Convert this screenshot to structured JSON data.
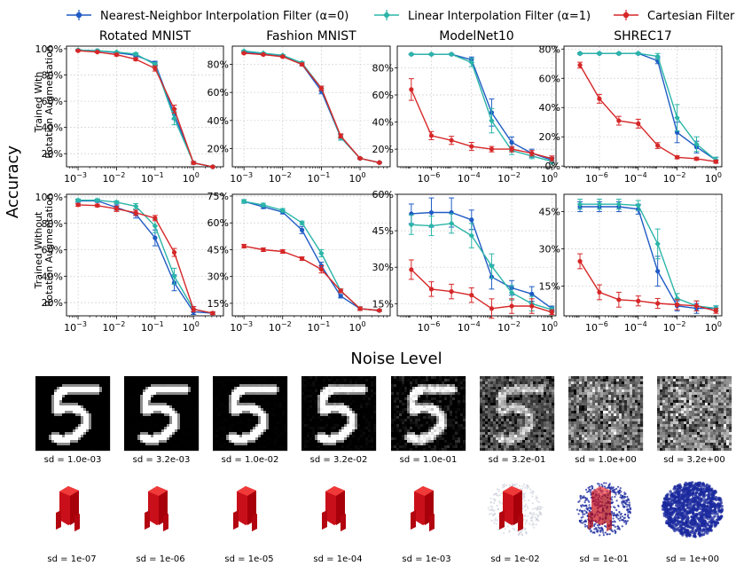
{
  "figure": {
    "ylabel": "Accuracy",
    "xlabel": "Noise Level",
    "row_labels": [
      [
        "Trained With",
        "Rotation Augmentation"
      ],
      [
        "Trained Without",
        "Rotation Augmentation"
      ]
    ],
    "legend": [
      {
        "name": "Nearest-Neighbor Interpolation Filter (α=0)",
        "color": "#1f5bc4"
      },
      {
        "name": "Linear Interpolation Filter (α=1)",
        "color": "#2bb5a8"
      },
      {
        "name": "Cartesian Filter",
        "color": "#d62728"
      }
    ]
  },
  "chart_data": [
    {
      "type": "line",
      "title": "Rotated MNIST",
      "row": 0,
      "xscale": "log",
      "xlim": [
        0.0005,
        6
      ],
      "ylim": [
        0.1,
        1.02
      ],
      "x": [
        0.001,
        0.00316,
        0.01,
        0.0316,
        0.1,
        0.316,
        1.0,
        3.16
      ],
      "xticks": [
        {
          "v": 0.001,
          "t": "10",
          "e": "−3"
        },
        {
          "v": 0.01,
          "t": "10",
          "e": "−2"
        },
        {
          "v": 0.1,
          "t": "10",
          "e": "−1"
        },
        {
          "v": 1,
          "t": "10",
          "e": "0"
        }
      ],
      "yticks": [
        {
          "v": 0.2,
          "t": "20%"
        },
        {
          "v": 0.4,
          "t": "40%"
        },
        {
          "v": 0.6,
          "t": "60%"
        },
        {
          "v": 0.8,
          "t": "80%"
        },
        {
          "v": 1.0,
          "t": "100%"
        }
      ],
      "series": [
        {
          "name": "Nearest-Neighbor Interpolation Filter (α=0)",
          "values": [
            0.99,
            0.985,
            0.97,
            0.95,
            0.89,
            0.5,
            0.13,
            0.1
          ],
          "err": [
            0.005,
            0.005,
            0.005,
            0.01,
            0.015,
            0.04,
            0.01,
            0.005
          ]
        },
        {
          "name": "Linear Interpolation Filter (α=1)",
          "values": [
            0.99,
            0.985,
            0.975,
            0.96,
            0.88,
            0.47,
            0.13,
            0.1
          ],
          "err": [
            0.005,
            0.005,
            0.005,
            0.01,
            0.015,
            0.05,
            0.01,
            0.005
          ]
        },
        {
          "name": "Cartesian Filter",
          "values": [
            0.985,
            0.975,
            0.955,
            0.92,
            0.85,
            0.54,
            0.13,
            0.1
          ],
          "err": [
            0.005,
            0.005,
            0.01,
            0.01,
            0.02,
            0.03,
            0.01,
            0.005
          ]
        }
      ]
    },
    {
      "type": "line",
      "title": "Fashion MNIST",
      "row": 0,
      "xscale": "log",
      "xlim": [
        0.0005,
        6
      ],
      "ylim": [
        0.07,
        0.93
      ],
      "x": [
        0.001,
        0.00316,
        0.01,
        0.0316,
        0.1,
        0.316,
        1.0,
        3.16
      ],
      "xticks": [
        {
          "v": 0.001,
          "t": "10",
          "e": "−3"
        },
        {
          "v": 0.01,
          "t": "10",
          "e": "−2"
        },
        {
          "v": 0.1,
          "t": "10",
          "e": "−1"
        },
        {
          "v": 1,
          "t": "10",
          "e": "0"
        }
      ],
      "yticks": [
        {
          "v": 0.2,
          "t": "20%"
        },
        {
          "v": 0.4,
          "t": "40%"
        },
        {
          "v": 0.6,
          "t": "60%"
        },
        {
          "v": 0.8,
          "t": "80%"
        }
      ],
      "series": [
        {
          "name": "Nearest-Neighbor Interpolation Filter (α=0)",
          "values": [
            0.89,
            0.875,
            0.86,
            0.8,
            0.61,
            0.28,
            0.13,
            0.1
          ],
          "err": [
            0.005,
            0.005,
            0.005,
            0.01,
            0.02,
            0.02,
            0.005,
            0.005
          ]
        },
        {
          "name": "Linear Interpolation Filter (α=1)",
          "values": [
            0.895,
            0.88,
            0.865,
            0.81,
            0.63,
            0.28,
            0.13,
            0.1
          ],
          "err": [
            0.005,
            0.005,
            0.005,
            0.01,
            0.015,
            0.02,
            0.005,
            0.005
          ]
        },
        {
          "name": "Cartesian Filter",
          "values": [
            0.88,
            0.87,
            0.855,
            0.8,
            0.63,
            0.29,
            0.13,
            0.1
          ],
          "err": [
            0.005,
            0.005,
            0.005,
            0.01,
            0.015,
            0.015,
            0.005,
            0.005
          ]
        }
      ]
    },
    {
      "type": "line",
      "title": "ModelNet10",
      "row": 0,
      "xscale": "log",
      "xlim": [
        2e-08,
        1.6
      ],
      "ylim": [
        0.07,
        0.96
      ],
      "x": [
        1e-07,
        1e-06,
        1e-05,
        0.0001,
        0.001,
        0.01,
        0.1,
        1
      ],
      "xticks": [
        {
          "v": 1e-06,
          "t": "10",
          "e": "−6"
        },
        {
          "v": 0.0001,
          "t": "10",
          "e": "−4"
        },
        {
          "v": 0.01,
          "t": "10",
          "e": "−2"
        },
        {
          "v": 1,
          "t": "10",
          "e": "0"
        }
      ],
      "yticks": [
        {
          "v": 0.2,
          "t": "20%"
        },
        {
          "v": 0.4,
          "t": "40%"
        },
        {
          "v": 0.6,
          "t": "60%"
        },
        {
          "v": 0.8,
          "t": "80%"
        }
      ],
      "series": [
        {
          "name": "Nearest-Neighbor Interpolation Filter (α=0)",
          "values": [
            0.9,
            0.9,
            0.9,
            0.86,
            0.47,
            0.25,
            0.17,
            0.12
          ],
          "err": [
            0.005,
            0.005,
            0.005,
            0.02,
            0.1,
            0.04,
            0.03,
            0.02
          ]
        },
        {
          "name": "Linear Interpolation Filter (α=1)",
          "values": [
            0.9,
            0.9,
            0.9,
            0.84,
            0.41,
            0.19,
            0.15,
            0.11
          ],
          "err": [
            0.005,
            0.005,
            0.005,
            0.03,
            0.09,
            0.03,
            0.02,
            0.02
          ]
        },
        {
          "name": "Cartesian Filter",
          "values": [
            0.64,
            0.3,
            0.265,
            0.22,
            0.2,
            0.2,
            0.17,
            0.13
          ],
          "err": [
            0.08,
            0.03,
            0.03,
            0.03,
            0.02,
            0.02,
            0.02,
            0.02
          ]
        }
      ]
    },
    {
      "type": "line",
      "title": "SHREC17",
      "row": 0,
      "xscale": "log",
      "xlim": [
        1.5e-08,
        2
      ],
      "ylim": [
        -0.005,
        0.82
      ],
      "x": [
        1e-07,
        1e-06,
        1e-05,
        0.0001,
        0.001,
        0.01,
        0.1,
        1
      ],
      "xticks": [
        {
          "v": 1e-06,
          "t": "10",
          "e": "−6"
        },
        {
          "v": 0.0001,
          "t": "10",
          "e": "−4"
        },
        {
          "v": 0.01,
          "t": "10",
          "e": "−2"
        },
        {
          "v": 1,
          "t": "10",
          "e": "0"
        }
      ],
      "yticks": [
        {
          "v": 0.0,
          "t": "0%"
        },
        {
          "v": 0.2,
          "t": "20%"
        },
        {
          "v": 0.4,
          "t": "40%"
        },
        {
          "v": 0.6,
          "t": "60%"
        },
        {
          "v": 0.8,
          "t": "80%"
        }
      ],
      "series": [
        {
          "name": "Nearest-Neighbor Interpolation Filter (α=0)",
          "values": [
            0.77,
            0.77,
            0.77,
            0.77,
            0.72,
            0.23,
            0.13,
            0.04
          ],
          "err": [
            0.005,
            0.005,
            0.005,
            0.005,
            0.02,
            0.07,
            0.04,
            0.02
          ]
        },
        {
          "name": "Linear Interpolation Filter (α=1)",
          "values": [
            0.77,
            0.77,
            0.77,
            0.77,
            0.75,
            0.33,
            0.15,
            0.04
          ],
          "err": [
            0.005,
            0.005,
            0.005,
            0.005,
            0.02,
            0.09,
            0.05,
            0.02
          ]
        },
        {
          "name": "Cartesian Filter",
          "values": [
            0.69,
            0.46,
            0.31,
            0.29,
            0.14,
            0.06,
            0.05,
            0.03
          ],
          "err": [
            0.02,
            0.03,
            0.03,
            0.03,
            0.02,
            0.01,
            0.01,
            0.01
          ]
        }
      ]
    },
    {
      "type": "line",
      "title": "",
      "row": 1,
      "xscale": "log",
      "xlim": [
        0.0005,
        6
      ],
      "ylim": [
        0.1,
        1.02
      ],
      "x": [
        0.001,
        0.00316,
        0.01,
        0.0316,
        0.1,
        0.316,
        1.0,
        3.16
      ],
      "xticks": [
        {
          "v": 0.001,
          "t": "10",
          "e": "−3"
        },
        {
          "v": 0.01,
          "t": "10",
          "e": "−2"
        },
        {
          "v": 0.1,
          "t": "10",
          "e": "−1"
        },
        {
          "v": 1,
          "t": "10",
          "e": "0"
        }
      ],
      "yticks": [
        {
          "v": 0.2,
          "t": "20%"
        },
        {
          "v": 0.4,
          "t": "40%"
        },
        {
          "v": 0.6,
          "t": "60%"
        },
        {
          "v": 0.8,
          "t": "80%"
        },
        {
          "v": 1.0,
          "t": "100%"
        }
      ],
      "series": [
        {
          "name": "Nearest-Neighbor Interpolation Filter (α=0)",
          "values": [
            0.97,
            0.97,
            0.92,
            0.87,
            0.69,
            0.35,
            0.13,
            0.12
          ],
          "err": [
            0.01,
            0.01,
            0.02,
            0.03,
            0.06,
            0.06,
            0.02,
            0.01
          ]
        },
        {
          "name": "Linear Interpolation Filter (α=1)",
          "values": [
            0.975,
            0.975,
            0.96,
            0.93,
            0.78,
            0.4,
            0.15,
            0.12
          ],
          "err": [
            0.01,
            0.01,
            0.01,
            0.02,
            0.05,
            0.06,
            0.02,
            0.01
          ]
        },
        {
          "name": "Cartesian Filter",
          "values": [
            0.94,
            0.935,
            0.91,
            0.88,
            0.84,
            0.58,
            0.15,
            0.12
          ],
          "err": [
            0.01,
            0.01,
            0.02,
            0.02,
            0.02,
            0.03,
            0.02,
            0.01
          ]
        }
      ]
    },
    {
      "type": "line",
      "title": "",
      "row": 1,
      "xscale": "log",
      "xlim": [
        0.0005,
        6
      ],
      "ylim": [
        0.08,
        0.76
      ],
      "x": [
        0.001,
        0.00316,
        0.01,
        0.0316,
        0.1,
        0.316,
        1.0,
        3.16
      ],
      "xticks": [
        {
          "v": 0.001,
          "t": "10",
          "e": "−3"
        },
        {
          "v": 0.01,
          "t": "10",
          "e": "−2"
        },
        {
          "v": 0.1,
          "t": "10",
          "e": "−1"
        },
        {
          "v": 1,
          "t": "10",
          "e": "0"
        }
      ],
      "yticks": [
        {
          "v": 0.15,
          "t": "15%"
        },
        {
          "v": 0.3,
          "t": "30%"
        },
        {
          "v": 0.45,
          "t": "45%"
        },
        {
          "v": 0.6,
          "t": "60%"
        },
        {
          "v": 0.75,
          "t": "75%"
        }
      ],
      "series": [
        {
          "name": "Nearest-Neighbor Interpolation Filter (α=0)",
          "values": [
            0.72,
            0.69,
            0.66,
            0.56,
            0.36,
            0.19,
            0.12,
            0.11
          ],
          "err": [
            0.01,
            0.01,
            0.01,
            0.02,
            0.02,
            0.01,
            0.01,
            0.005
          ]
        },
        {
          "name": "Linear Interpolation Filter (α=1)",
          "values": [
            0.72,
            0.7,
            0.67,
            0.6,
            0.43,
            0.22,
            0.12,
            0.11
          ],
          "err": [
            0.01,
            0.01,
            0.01,
            0.01,
            0.02,
            0.01,
            0.01,
            0.005
          ]
        },
        {
          "name": "Cartesian Filter",
          "values": [
            0.47,
            0.45,
            0.44,
            0.4,
            0.34,
            0.22,
            0.12,
            0.11
          ],
          "err": [
            0.01,
            0.01,
            0.01,
            0.01,
            0.02,
            0.01,
            0.01,
            0.005
          ]
        }
      ]
    },
    {
      "type": "line",
      "title": "",
      "row": 1,
      "xscale": "log",
      "xlim": [
        2e-08,
        1.6
      ],
      "ylim": [
        0.1,
        0.6
      ],
      "x": [
        1e-07,
        1e-06,
        1e-05,
        0.0001,
        0.001,
        0.01,
        0.1,
        1
      ],
      "xticks": [
        {
          "v": 1e-06,
          "t": "10",
          "e": "−6"
        },
        {
          "v": 0.0001,
          "t": "10",
          "e": "−4"
        },
        {
          "v": 0.01,
          "t": "10",
          "e": "−2"
        },
        {
          "v": 1,
          "t": "10",
          "e": "0"
        }
      ],
      "yticks": [
        {
          "v": 0.15,
          "t": "15%"
        },
        {
          "v": 0.3,
          "t": "30%"
        },
        {
          "v": 0.45,
          "t": "45%"
        },
        {
          "v": 0.6,
          "t": "60%"
        }
      ],
      "series": [
        {
          "name": "Nearest-Neighbor Interpolation Filter (α=0)",
          "values": [
            0.52,
            0.525,
            0.525,
            0.495,
            0.26,
            0.215,
            0.19,
            0.13
          ],
          "err": [
            0.04,
            0.06,
            0.06,
            0.04,
            0.05,
            0.03,
            0.03,
            0.01
          ]
        },
        {
          "name": "Linear Interpolation Filter (α=1)",
          "values": [
            0.475,
            0.47,
            0.48,
            0.43,
            0.305,
            0.195,
            0.15,
            0.125
          ],
          "err": [
            0.04,
            0.04,
            0.04,
            0.05,
            0.05,
            0.03,
            0.03,
            0.01
          ]
        },
        {
          "name": "Cartesian Filter",
          "values": [
            0.29,
            0.21,
            0.2,
            0.185,
            0.13,
            0.14,
            0.14,
            0.115
          ],
          "err": [
            0.04,
            0.03,
            0.03,
            0.03,
            0.04,
            0.03,
            0.03,
            0.01
          ]
        }
      ]
    },
    {
      "type": "line",
      "title": "",
      "row": 1,
      "xscale": "log",
      "xlim": [
        1.5e-08,
        2
      ],
      "ylim": [
        0.03,
        0.52
      ],
      "x": [
        1e-07,
        1e-06,
        1e-05,
        0.0001,
        0.001,
        0.01,
        0.1,
        1
      ],
      "xticks": [
        {
          "v": 1e-06,
          "t": "10",
          "e": "−6"
        },
        {
          "v": 0.0001,
          "t": "10",
          "e": "−4"
        },
        {
          "v": 0.01,
          "t": "10",
          "e": "−2"
        },
        {
          "v": 1,
          "t": "10",
          "e": "0"
        }
      ],
      "yticks": [
        {
          "v": 0.15,
          "t": "15%"
        },
        {
          "v": 0.3,
          "t": "30%"
        },
        {
          "v": 0.45,
          "t": "45%"
        }
      ],
      "series": [
        {
          "name": "Nearest-Neighbor Interpolation Filter (α=0)",
          "values": [
            0.47,
            0.47,
            0.47,
            0.46,
            0.21,
            0.07,
            0.06,
            0.06
          ],
          "err": [
            0.02,
            0.02,
            0.02,
            0.02,
            0.06,
            0.02,
            0.02,
            0.01
          ]
        },
        {
          "name": "Linear Interpolation Filter (α=1)",
          "values": [
            0.48,
            0.48,
            0.48,
            0.475,
            0.32,
            0.1,
            0.07,
            0.06
          ],
          "err": [
            0.02,
            0.02,
            0.02,
            0.02,
            0.06,
            0.02,
            0.02,
            0.01
          ]
        },
        {
          "name": "Cartesian Filter",
          "values": [
            0.25,
            0.125,
            0.095,
            0.09,
            0.08,
            0.075,
            0.07,
            0.05
          ],
          "err": [
            0.03,
            0.03,
            0.03,
            0.02,
            0.02,
            0.02,
            0.02,
            0.01
          ]
        }
      ]
    }
  ],
  "mnist_samples": {
    "labels": [
      "sd = 1.0e-03",
      "sd = 3.2e-03",
      "sd = 1.0e-02",
      "sd = 3.2e-02",
      "sd = 1.0e-01",
      "sd = 3.2e-01",
      "sd = 1.0e+00",
      "sd = 3.2e+00"
    ],
    "noise": [
      0.001,
      0.00316,
      0.01,
      0.0316,
      0.1,
      0.316,
      1.0,
      3.16
    ]
  },
  "shape_samples": {
    "labels": [
      "sd = 1e-07",
      "sd = 1e-06",
      "sd = 1e-05",
      "sd = 1e-04",
      "sd = 1e-03",
      "sd = 1e-02",
      "sd = 1e-01",
      "sd = 1e+00"
    ],
    "noise": [
      1e-07,
      1e-06,
      1e-05,
      0.0001,
      0.001,
      0.01,
      0.1,
      1
    ]
  }
}
